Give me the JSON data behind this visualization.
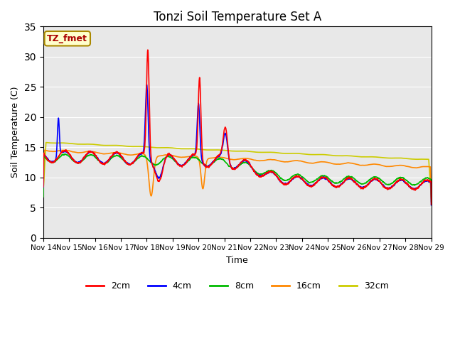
{
  "title": "Tonzi Soil Temperature Set A",
  "xlabel": "Time",
  "ylabel": "Soil Temperature (C)",
  "ylim": [
    0,
    35
  ],
  "yticks": [
    0,
    5,
    10,
    15,
    20,
    25,
    30,
    35
  ],
  "xlim": [
    0,
    360
  ],
  "xtick_labels": [
    "Nov 14",
    "Nov 15",
    "Nov 16",
    "Nov 17",
    "Nov 18",
    "Nov 19",
    "Nov 20",
    "Nov 21",
    "Nov 22",
    "Nov 23",
    "Nov 24",
    "Nov 25",
    "Nov 26",
    "Nov 27",
    "Nov 28",
    "Nov 29"
  ],
  "xtick_positions": [
    0,
    24,
    48,
    72,
    96,
    120,
    144,
    168,
    192,
    216,
    240,
    264,
    288,
    312,
    336,
    360
  ],
  "legend_labels": [
    "2cm",
    "4cm",
    "8cm",
    "16cm",
    "32cm"
  ],
  "legend_colors": [
    "#ff0000",
    "#0000ff",
    "#00bb00",
    "#ff8800",
    "#cccc00"
  ],
  "annotation_text": "TZ_fmet",
  "plot_bg_color": "#e8e8e8",
  "fig_bg_color": "#ffffff",
  "line_width": 1.2,
  "title_fontsize": 12
}
